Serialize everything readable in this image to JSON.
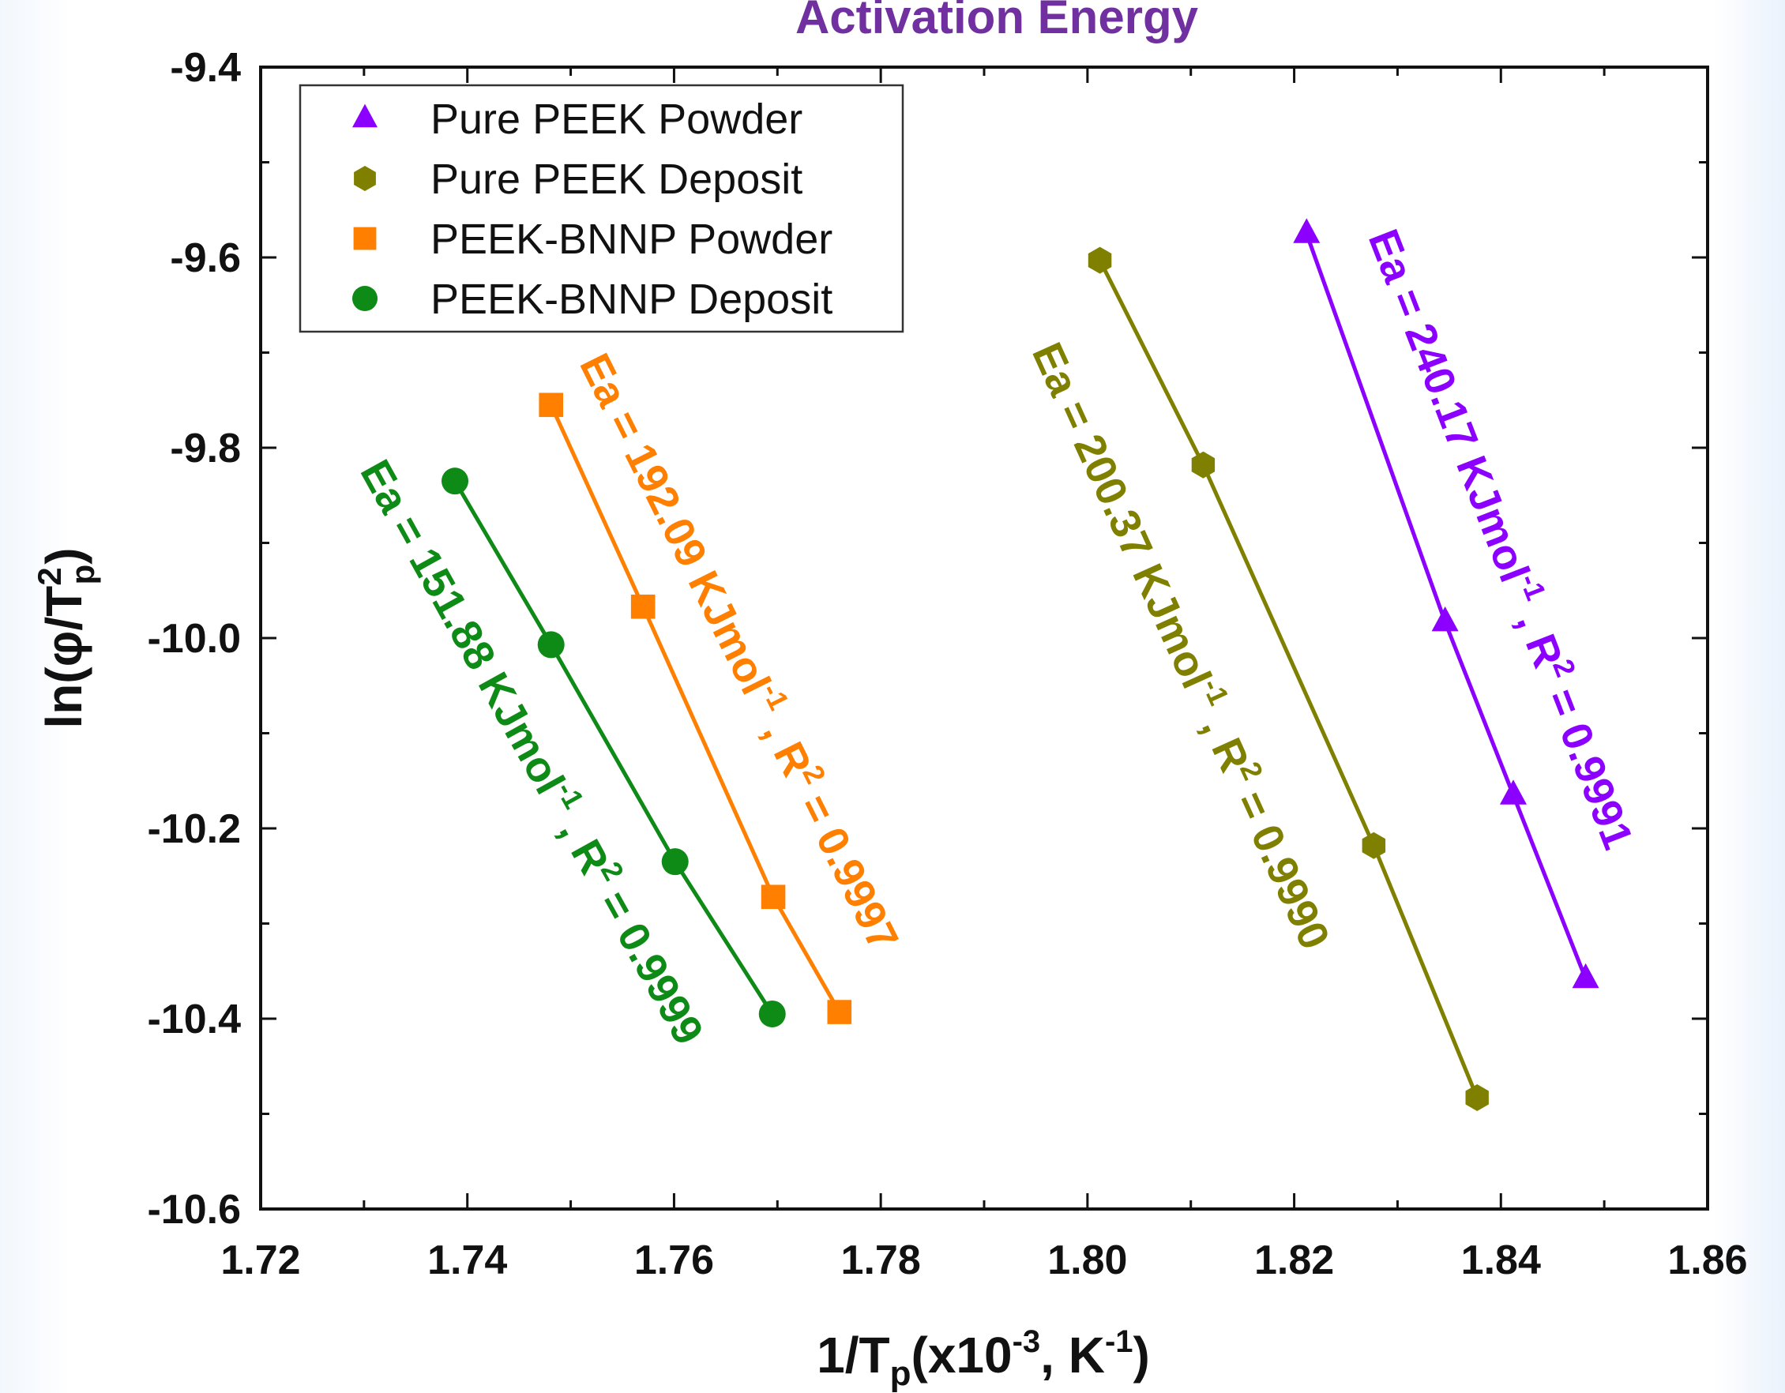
{
  "chart_data": {
    "type": "scatter",
    "title": "Activation Energy",
    "xlabel": {
      "main": "1/T",
      "sub": "p",
      "paren_open": "(x10",
      "exp1": "-3",
      "mid": ", K",
      "exp2": "-1",
      "paren_close": ")"
    },
    "ylabel": {
      "main": "ln(φ/T",
      "sup": "2",
      "sub": "p",
      "close": ")"
    },
    "xlim": [
      1.72,
      1.86
    ],
    "ylim": [
      -10.6,
      -9.4
    ],
    "xticks": [
      "1.72",
      "1.74",
      "1.76",
      "1.78",
      "1.80",
      "1.82",
      "1.84",
      "1.86"
    ],
    "yticks": [
      "-9.4",
      "-9.6",
      "-9.8",
      "-10.0",
      "-10.2",
      "-10.4",
      "-10.6"
    ],
    "legend_position": "top-left",
    "grid": false,
    "series": [
      {
        "name": "Pure PEEK Powder",
        "marker": "triangle",
        "color": "#8b00ff",
        "x": [
          1.8212,
          1.8346,
          1.8412,
          1.8482
        ],
        "y": [
          -9.575,
          -9.983,
          -10.165,
          -10.358
        ],
        "annotation": {
          "text": "Ea = 240.17 KJmol",
          "sup": "-1",
          "rest": " , R",
          "sup2": "2",
          "tail": " = 0.9991"
        }
      },
      {
        "name": "Pure PEEK Deposit",
        "marker": "hexagon",
        "color": "#808000",
        "x": [
          1.8012,
          1.8112,
          1.8277,
          1.8377
        ],
        "y": [
          -9.603,
          -9.818,
          -10.218,
          -10.483
        ],
        "annotation": {
          "text": "Ea = 200.37 KJmol",
          "sup": "-1",
          "rest": " , R",
          "sup2": "2",
          "tail": " = 0.9990"
        }
      },
      {
        "name": "PEEK-BNNP Powder",
        "marker": "square",
        "color": "#ff7f00",
        "x": [
          1.7481,
          1.757,
          1.7696,
          1.776
        ],
        "y": [
          -9.755,
          -9.967,
          -10.272,
          -10.393
        ],
        "annotation": {
          "text": "Ea = 192.09 KJmol",
          "sup": "-1",
          "rest": " , R",
          "sup2": "2",
          "tail": " = 0.9997"
        }
      },
      {
        "name": "PEEK-BNNP Deposit",
        "marker": "circle",
        "color": "#0e8a16",
        "x": [
          1.7388,
          1.7481,
          1.7601,
          1.7695
        ],
        "y": [
          -9.835,
          -10.007,
          -10.235,
          -10.395
        ],
        "annotation": {
          "text": "Ea = 151.88 KJmol",
          "sup": "-1",
          "rest": " , R",
          "sup2": "2",
          "tail": " = 0.9999"
        }
      }
    ]
  }
}
